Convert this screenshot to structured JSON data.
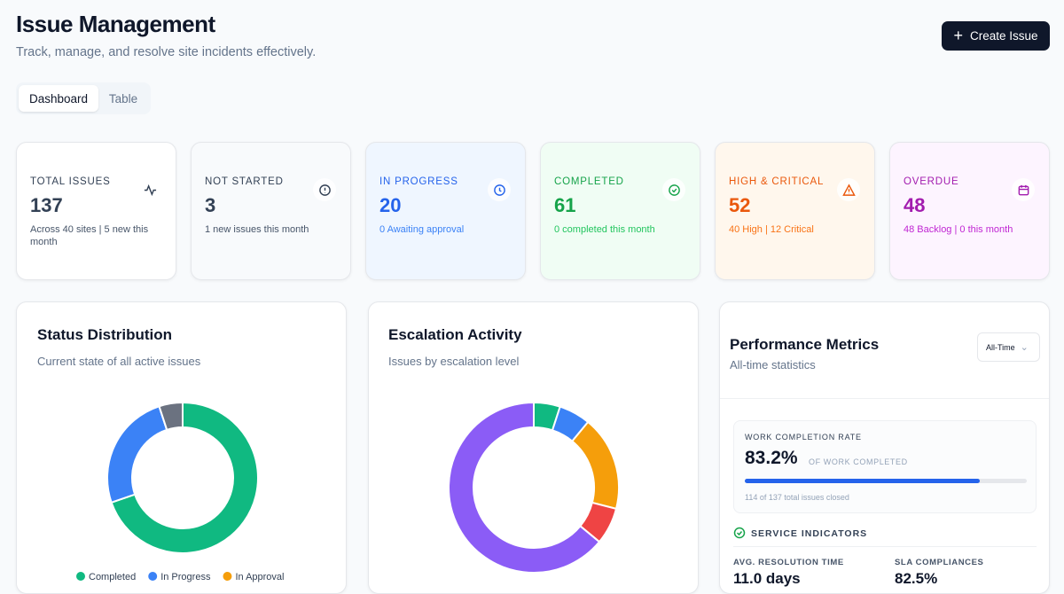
{
  "header": {
    "title": "Issue Management",
    "subtitle": "Track, manage, and resolve site incidents effectively.",
    "button": "Create Issue"
  },
  "tabs": [
    "Dashboard",
    "Table"
  ],
  "stats": [
    {
      "label": "TOTAL ISSUES",
      "value": "137",
      "note": "Across 40 sites | 5 new this month"
    },
    {
      "label": "NOT STARTED",
      "value": "3",
      "note": "1 new issues this month"
    },
    {
      "label": "IN PROGRESS",
      "value": "20",
      "note": "0 Awaiting approval"
    },
    {
      "label": "COMPLETED",
      "value": "61",
      "note": "0 completed this month"
    },
    {
      "label": "HIGH & CRITICAL",
      "value": "52",
      "note": "40 High | 12 Critical"
    },
    {
      "label": "OVERDUE",
      "value": "48",
      "note": "48 Backlog | 0 this month"
    }
  ],
  "status_chart": {
    "type": "pie",
    "title": "Status Distribution",
    "subtitle": "Current state of all active issues",
    "categories": [
      "Completed",
      "In Progress",
      "In Approval",
      null
    ],
    "values": [
      69,
      25,
      0,
      5
    ],
    "colors": [
      "#10b981",
      "#3b82f6",
      "#f59e0b",
      "#6b7280"
    ]
  },
  "escalation_chart": {
    "type": "pie",
    "title": "Escalation Activity",
    "subtitle": "Issues by escalation level",
    "categories": [
      null,
      null,
      null,
      null,
      null
    ],
    "values": [
      5,
      6,
      18,
      7,
      64
    ],
    "colors": [
      "#10b981",
      "#3b82f6",
      "#f59e0b",
      "#ef4444",
      "#8b5cf6"
    ]
  },
  "performance": {
    "title": "Performance Metrics",
    "subtitle": "All-time statistics",
    "select": "All-Time",
    "rate_title": "WORK COMPLETION RATE",
    "rate": 83.2,
    "rate_label": "83.2%",
    "rate_suffix": "OF WORK COMPLETED",
    "rate_note": "114 of 137 total issues closed",
    "section": "SERVICE INDICATORS",
    "indicators": [
      {
        "label": "AVG. RESOLUTION TIME",
        "value": "11.0 days"
      },
      {
        "label": "SLA COMPLIANCES",
        "value": "82.5%"
      }
    ]
  }
}
